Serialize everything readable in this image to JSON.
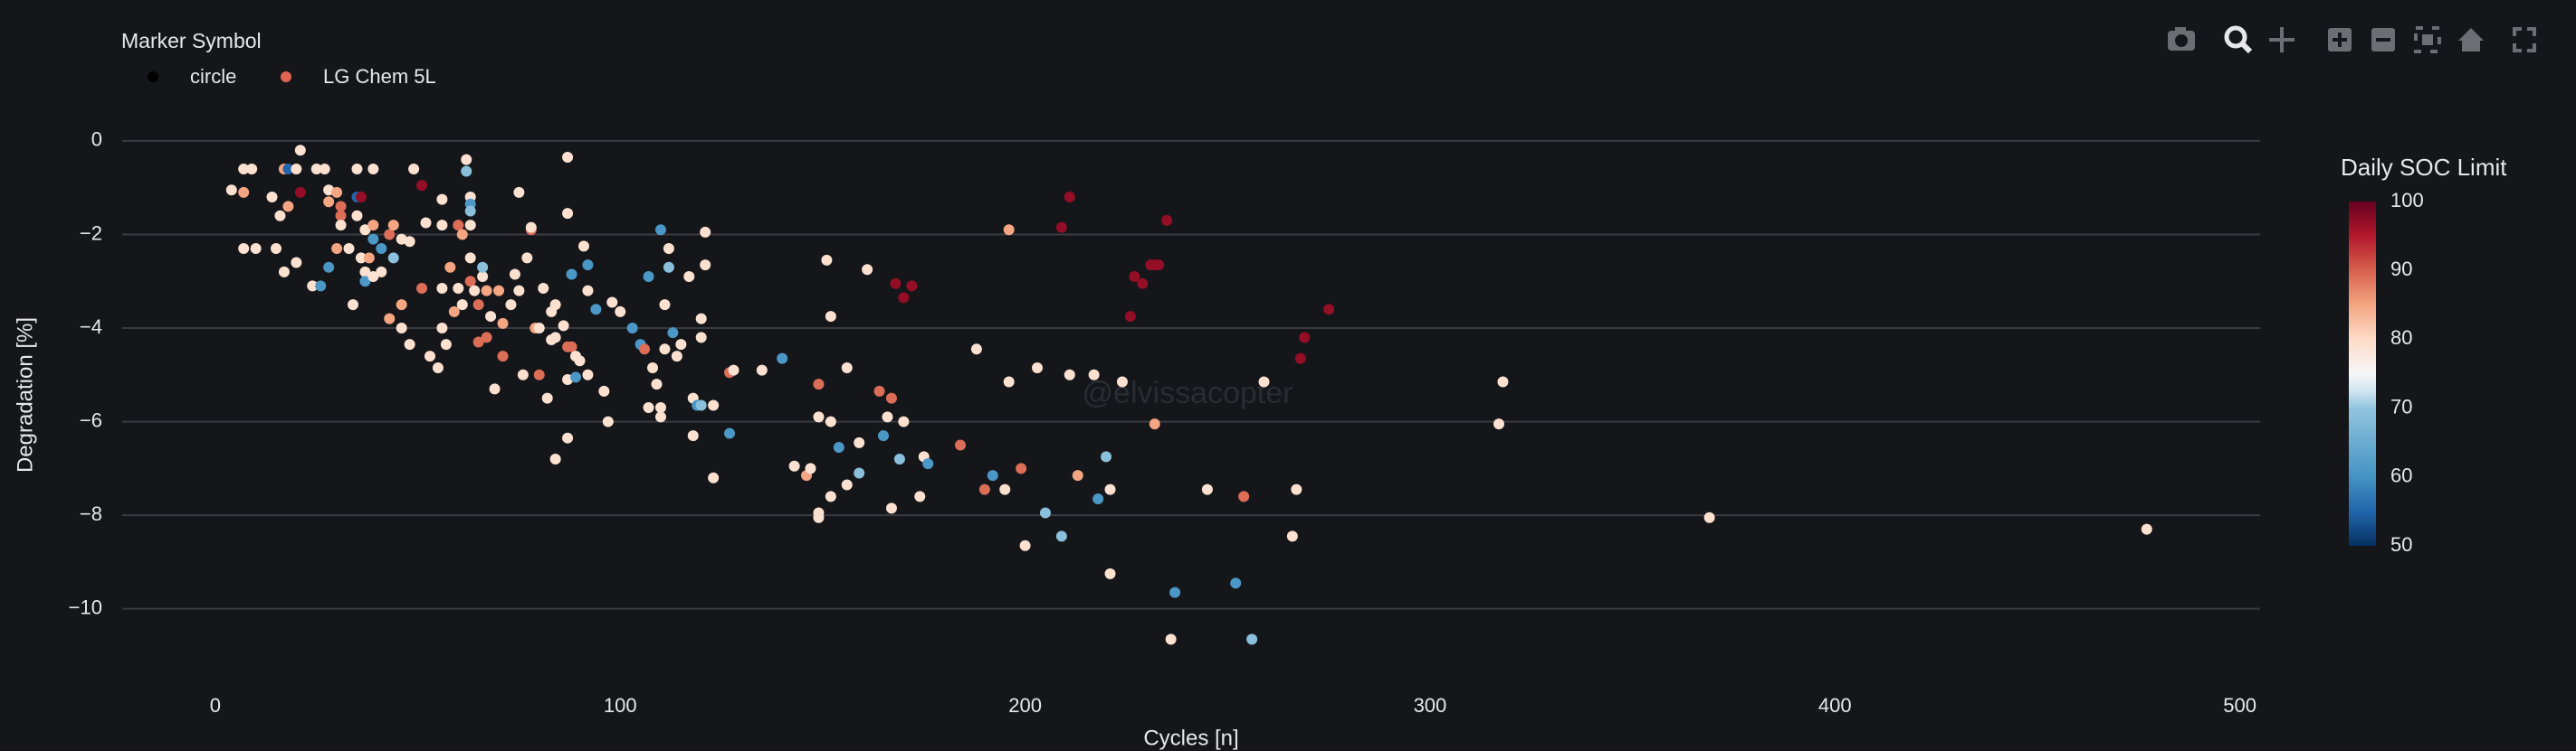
{
  "chart_data": {
    "type": "scatter",
    "x_label": "Cycles [n]",
    "y_label": "Degradation [%]",
    "watermark": "@elvissacopter",
    "xlim": [
      -23,
      505
    ],
    "xticks": [
      0,
      100,
      200,
      300,
      400,
      500
    ],
    "ylim": [
      -11.3,
      0.5
    ],
    "yticks": [
      {
        "value": -10,
        "label": "−10"
      },
      {
        "value": -8,
        "label": "−8"
      },
      {
        "value": -6,
        "label": "−6"
      },
      {
        "value": -4,
        "label": "−4"
      },
      {
        "value": -2,
        "label": "−2"
      },
      0
    ],
    "grid": true,
    "legend": {
      "title": "Marker Symbol",
      "position": "top-left",
      "entries": [
        {
          "name": "circle",
          "color": "#000000"
        },
        {
          "name": "LG Chem 5L",
          "color": "#e0644f"
        }
      ]
    },
    "colorbar": {
      "title": "Daily SOC Limit",
      "lim": [
        50,
        100
      ],
      "ticks": [
        50,
        60,
        70,
        80,
        90,
        100
      ]
    },
    "colorscale": [
      [
        0,
        "#053061"
      ],
      [
        0.1,
        "#2166ac"
      ],
      [
        0.2,
        "#4393c3"
      ],
      [
        0.4,
        "#92c5de"
      ],
      [
        0.45,
        "#d1e5f0"
      ],
      [
        0.5,
        "#f7f7f7"
      ],
      [
        0.6,
        "#fddbc7"
      ],
      [
        0.7,
        "#f4a582"
      ],
      [
        0.8,
        "#d6604d"
      ],
      [
        0.9,
        "#b2182b"
      ],
      [
        1,
        "#67001f"
      ]
    ],
    "x": [
      4,
      7,
      9,
      7,
      7,
      10,
      14,
      15,
      16,
      17,
      18,
      20,
      21,
      21,
      18,
      17,
      20,
      24,
      26,
      25,
      27,
      28,
      28,
      30,
      31,
      31,
      31,
      28,
      30,
      33,
      34,
      35,
      35,
      36,
      35,
      37,
      36,
      38,
      37,
      37,
      39,
      39,
      39,
      39,
      41,
      41,
      43,
      43,
      44,
      44,
      46,
      46,
      46,
      49,
      51,
      48,
      48,
      51,
      52,
      53,
      55,
      56,
      56,
      56,
      56,
      57,
      58,
      59,
      60,
      60,
      61,
      61,
      62,
      62,
      63,
      63,
      63,
      63,
      63,
      63,
      64,
      65,
      65,
      66,
      66,
      67,
      67,
      68,
      69,
      70,
      71,
      71,
      73,
      74,
      75,
      75,
      76,
      77,
      78,
      78,
      79,
      80,
      80,
      81,
      82,
      83,
      83,
      84,
      84,
      84,
      86,
      87,
      87,
      87,
      87,
      87,
      88,
      88,
      89,
      89,
      90,
      91,
      92,
      92,
      92,
      94,
      96,
      97,
      98,
      100,
      103,
      105,
      106,
      107,
      107,
      108,
      109,
      110,
      110,
      110,
      111,
      111,
      112,
      112,
      113,
      114,
      115,
      117,
      118,
      118,
      119,
      120,
      120,
      120,
      121,
      121,
      123,
      123,
      127,
      127,
      128,
      135,
      140,
      143,
      146,
      147,
      149,
      149,
      149,
      149,
      151,
      152,
      152,
      152,
      154,
      156,
      156,
      159,
      159,
      161,
      164,
      165,
      166,
      167,
      167,
      168,
      169,
      170,
      170,
      172,
      174,
      175,
      176,
      184,
      188,
      190,
      192,
      195,
      196,
      196,
      199,
      200,
      203,
      205,
      209,
      209,
      211,
      211,
      213,
      217,
      218,
      220,
      221,
      221,
      224,
      226,
      227,
      229,
      231,
      232,
      232,
      233,
      235,
      236,
      237,
      245,
      252,
      254,
      256,
      259,
      266,
      267,
      268,
      269,
      275,
      317,
      318,
      369,
      477
    ],
    "values": [
      -1.05,
      -0.6,
      -0.6,
      -1.1,
      -2.3,
      -2.3,
      -1.2,
      -2.3,
      -1.6,
      -0.6,
      -0.6,
      -0.6,
      -0.2,
      -1.1,
      -1.4,
      -2.8,
      -2.6,
      -3.1,
      -3.1,
      -0.6,
      -0.6,
      -1.05,
      -1.3,
      -1.1,
      -1.4,
      -1.6,
      -1.8,
      -2.7,
      -2.3,
      -2.3,
      -3.5,
      -0.6,
      -1.2,
      -1.2,
      -1.6,
      -1.9,
      -2.5,
      -2.5,
      -2.8,
      -3.0,
      -0.6,
      -1.8,
      -2.1,
      -2.9,
      -2.8,
      -2.3,
      -3.8,
      -2.0,
      -1.8,
      -2.5,
      -2.1,
      -3.5,
      -4.0,
      -0.6,
      -0.95,
      -2.15,
      -4.35,
      -3.15,
      -1.75,
      -4.6,
      -4.85,
      -1.25,
      -1.8,
      -3.15,
      -4.0,
      -4.35,
      -2.7,
      -3.65,
      -1.8,
      -3.15,
      -2.0,
      -3.5,
      -0.4,
      -0.65,
      -1.2,
      -1.35,
      -1.5,
      -1.8,
      -2.5,
      -3.0,
      -3.2,
      -3.5,
      -4.3,
      -2.9,
      -2.7,
      -3.2,
      -4.2,
      -3.75,
      -5.3,
      -3.2,
      -3.9,
      -4.6,
      -3.5,
      -2.85,
      -3.2,
      -1.1,
      -5.0,
      -2.5,
      -1.9,
      -1.85,
      -4.0,
      -4.0,
      -5.0,
      -3.15,
      -5.5,
      -4.25,
      -3.65,
      -3.5,
      -6.8,
      -4.2,
      -3.95,
      -4.4,
      -5.1,
      -1.55,
      -6.35,
      -0.35,
      -2.85,
      -4.4,
      -4.6,
      -5.05,
      -4.7,
      -2.25,
      -2.65,
      -3.2,
      -5.0,
      -3.6,
      -5.35,
      -6.0,
      -3.45,
      -3.65,
      -4.0,
      -4.35,
      -4.45,
      -2.9,
      -5.7,
      -4.85,
      -5.2,
      -1.9,
      -5.7,
      -5.9,
      -3.5,
      -4.45,
      -2.7,
      -2.3,
      -4.1,
      -4.6,
      -4.35,
      -2.9,
      -5.5,
      -6.3,
      -5.65,
      -5.65,
      -4.2,
      -3.8,
      -2.65,
      -1.95,
      -5.65,
      -7.2,
      -6.25,
      -4.95,
      -4.9,
      -4.9,
      -4.65,
      -6.95,
      -7.15,
      -7.0,
      -5.2,
      -5.9,
      -7.95,
      -8.05,
      -2.55,
      -6.0,
      -7.6,
      -3.75,
      -6.55,
      -4.85,
      -7.35,
      -6.45,
      -7.1,
      -2.75,
      -5.35,
      -6.3,
      -5.9,
      -7.85,
      -5.5,
      -3.05,
      -6.8,
      -6.0,
      -3.35,
      -3.1,
      -7.6,
      -6.75,
      -6.9,
      -6.5,
      -4.45,
      -7.45,
      -7.15,
      -7.45,
      -1.9,
      -5.15,
      -7.0,
      -8.65,
      -4.85,
      -7.95,
      -1.85,
      -8.45,
      -1.2,
      -5.0,
      -7.15,
      -5.0,
      -7.65,
      -6.75,
      -7.45,
      -9.25,
      -5.15,
      -3.75,
      -2.9,
      -3.05,
      -2.65,
      -2.65,
      -6.05,
      -2.65,
      -1.7,
      -10.65,
      -9.65,
      -7.45,
      -9.45,
      -7.6,
      -10.65,
      -5.15,
      -8.45,
      -7.45,
      -4.65,
      -4.2,
      -3.6,
      -6.05,
      -5.15,
      -8.05,
      -8.3
    ],
    "color_values": [
      79,
      79,
      79,
      85,
      79,
      79,
      79,
      79,
      79,
      85,
      55,
      79,
      79,
      97,
      85,
      79,
      79,
      79,
      61,
      79,
      79,
      79,
      85,
      85,
      89,
      89,
      79,
      61,
      85,
      79,
      79,
      79,
      55,
      97,
      79,
      79,
      79,
      85,
      79,
      61,
      79,
      85,
      61,
      79,
      79,
      61,
      85,
      89,
      85,
      69,
      79,
      85,
      79,
      79,
      97,
      79,
      79,
      89,
      79,
      79,
      79,
      79,
      79,
      79,
      79,
      79,
      85,
      85,
      89,
      79,
      85,
      79,
      79,
      69,
      79,
      61,
      69,
      79,
      79,
      89,
      79,
      89,
      89,
      79,
      69,
      85,
      89,
      79,
      79,
      85,
      85,
      89,
      79,
      79,
      79,
      79,
      79,
      79,
      89,
      79,
      85,
      79,
      89,
      79,
      79,
      79,
      79,
      79,
      79,
      79,
      79,
      89,
      79,
      79,
      79,
      79,
      61,
      89,
      79,
      61,
      79,
      79,
      61,
      79,
      79,
      61,
      79,
      79,
      79,
      79,
      61,
      61,
      89,
      61,
      79,
      79,
      79,
      61,
      79,
      79,
      79,
      79,
      69,
      79,
      61,
      79,
      79,
      79,
      79,
      79,
      61,
      69,
      79,
      79,
      79,
      79,
      79,
      79,
      61,
      89,
      79,
      79,
      61,
      79,
      85,
      79,
      89,
      79,
      79,
      79,
      79,
      79,
      79,
      79,
      61,
      79,
      79,
      79,
      69,
      79,
      89,
      61,
      79,
      79,
      89,
      97,
      69,
      79,
      97,
      97,
      79,
      79,
      61,
      89,
      79,
      89,
      61,
      79,
      85,
      79,
      89,
      79,
      79,
      69,
      97,
      69,
      97,
      79,
      85,
      79,
      61,
      69,
      79,
      79,
      79,
      97,
      97,
      97,
      97,
      97,
      85,
      97,
      97,
      79,
      61,
      79,
      61,
      89,
      69,
      79,
      79,
      79,
      97,
      97,
      97,
      79,
      79,
      79,
      79
    ]
  }
}
